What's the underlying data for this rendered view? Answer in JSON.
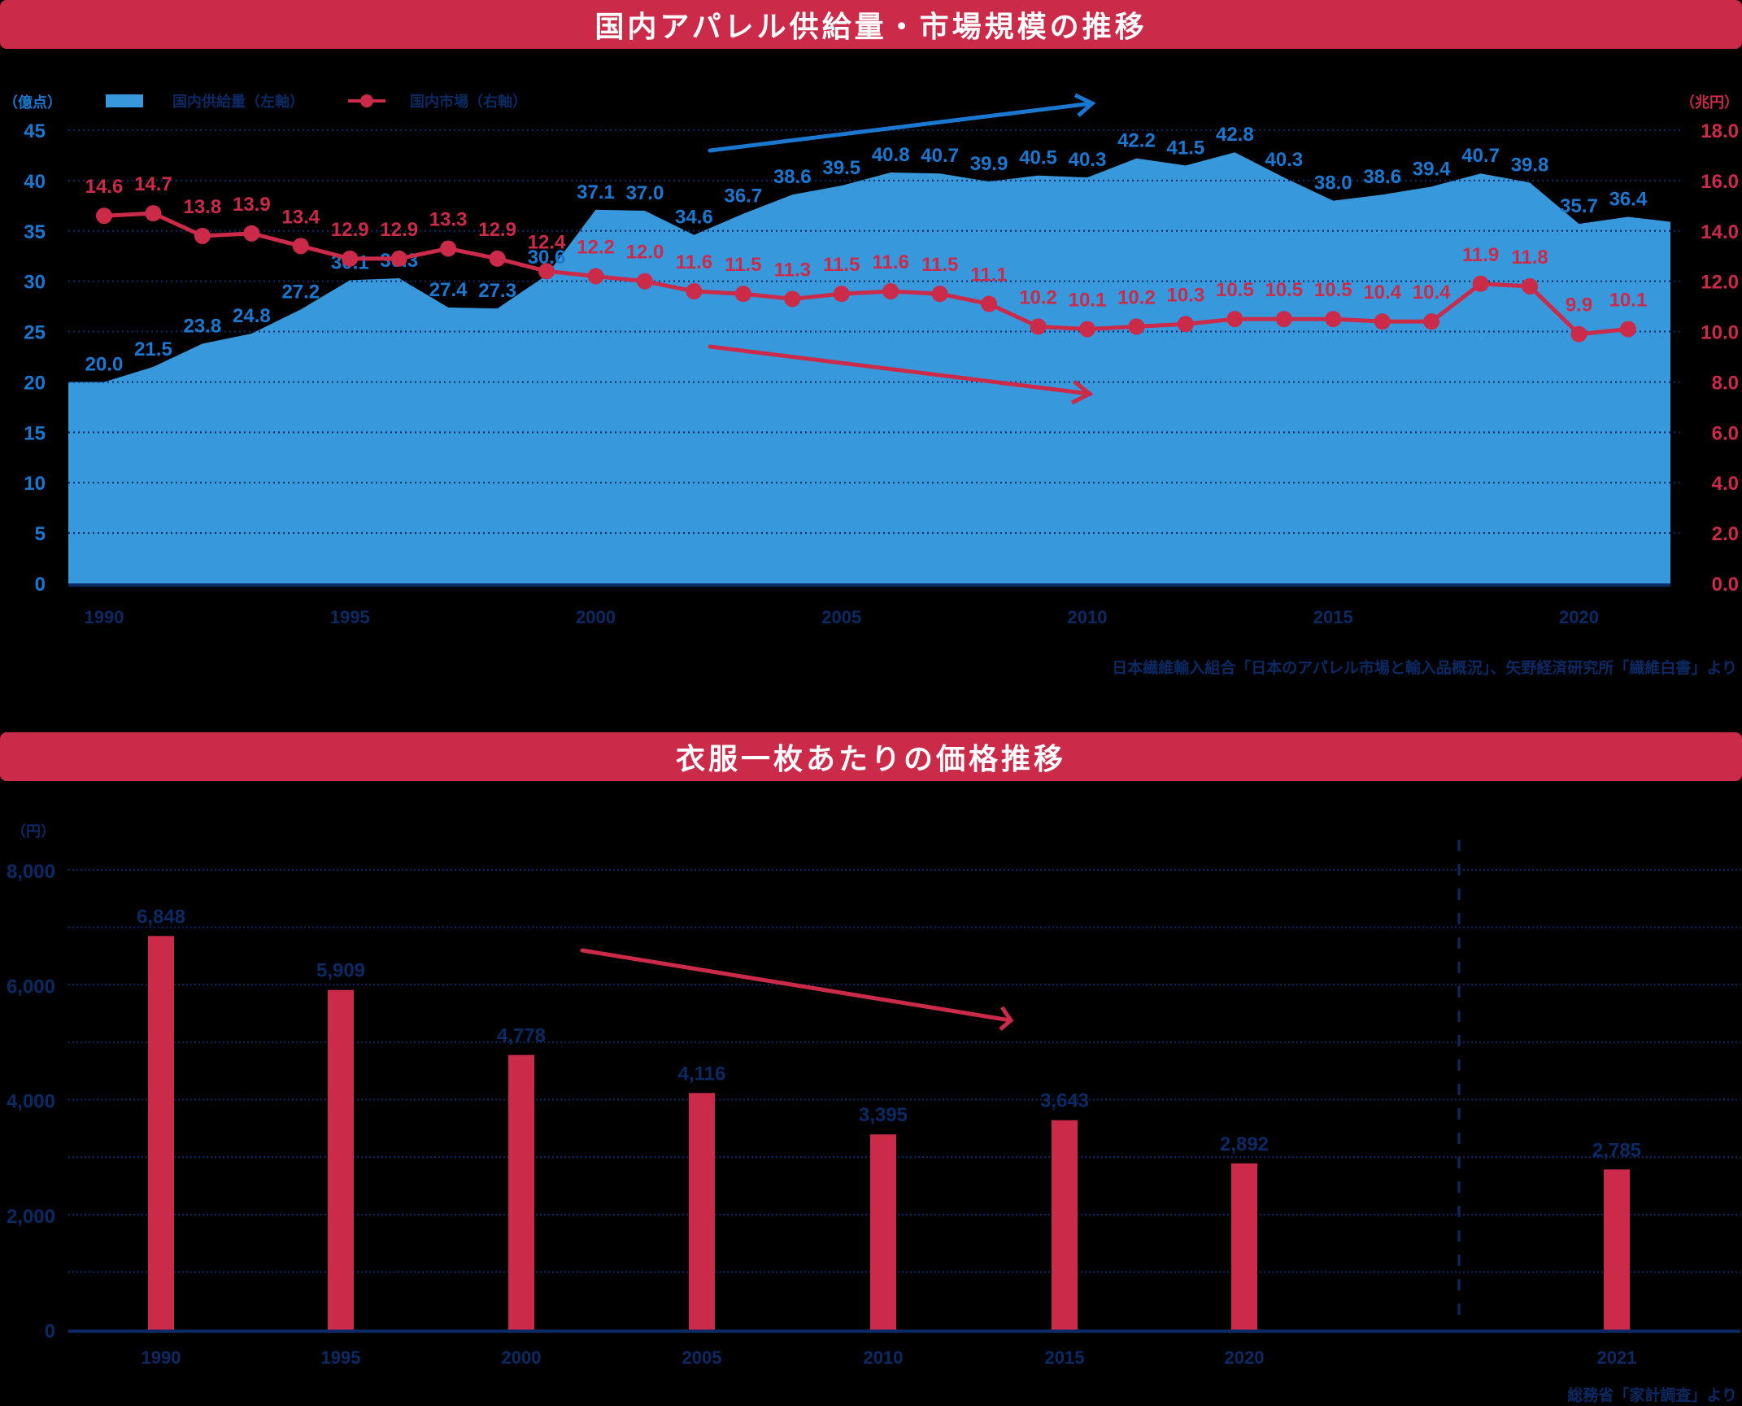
{
  "colors": {
    "banner": "#cb2a48",
    "area": "#3799dc",
    "area_label": "#1a78d0",
    "line": "#cb2a48",
    "navy": "#0b2a63"
  },
  "chart1": {
    "title": "国内アパレル供給量・市場規模の推移",
    "left_unit": "（億点）",
    "right_unit": "（兆円）",
    "legend": {
      "area_label": "国内供給量（左軸）",
      "line_label": "国内市場（右軸）"
    },
    "source": "日本繊維輸入組合「日本のアパレル市場と輸入品概況」、矢野経済研究所「繊維白書」より"
  },
  "chart2": {
    "title": "衣服一枚あたりの価格推移",
    "unit": "（円）",
    "source": "総務省「家計調査」より"
  },
  "chart_data": [
    {
      "type": "area+line",
      "title": "国内アパレル供給量・市場規模の推移",
      "x": [
        1990,
        1991,
        1992,
        1993,
        1994,
        1995,
        1996,
        1997,
        1998,
        1999,
        2000,
        2001,
        2002,
        2003,
        2004,
        2005,
        2006,
        2007,
        2008,
        2009,
        2010,
        2011,
        2012,
        2013,
        2014,
        2015,
        2016,
        2017,
        2018,
        2019,
        2020,
        2021,
        2022
      ],
      "x_tick_labels": [
        "1990",
        "1995",
        "2000",
        "2005",
        "2010",
        "2015",
        "2020"
      ],
      "series": [
        {
          "name": "国内供給量（左軸）",
          "type": "area",
          "axis": "left",
          "values": [
            20.0,
            21.5,
            23.8,
            24.8,
            27.2,
            30.1,
            30.3,
            27.4,
            27.3,
            30.6,
            37.1,
            37.0,
            34.6,
            36.7,
            38.6,
            39.5,
            40.8,
            40.7,
            39.9,
            40.5,
            40.3,
            42.2,
            41.5,
            42.8,
            40.3,
            38.0,
            38.6,
            39.4,
            40.7,
            39.8,
            35.7,
            36.4,
            35.9
          ],
          "labels": [
            "20.0",
            "21.5",
            "23.8",
            "24.8",
            "27.2",
            "30.1",
            "30.3",
            "27.4",
            "27.3",
            "30.6",
            "37.1",
            "37.0",
            "34.6",
            "36.7",
            "38.6",
            "39.5",
            "40.8",
            "40.7",
            "39.9",
            "40.5",
            "40.3",
            "42.2",
            "41.5",
            "42.8",
            "40.3",
            "38.0",
            "38.6",
            "39.4",
            "40.7",
            "39.8",
            "35.7",
            "36.4",
            ""
          ]
        },
        {
          "name": "国内市場（右軸）",
          "type": "line",
          "axis": "right",
          "values": [
            14.6,
            14.7,
            13.8,
            13.9,
            13.4,
            12.9,
            12.9,
            13.3,
            12.9,
            12.4,
            12.2,
            12.0,
            11.6,
            11.5,
            11.3,
            11.5,
            11.6,
            11.5,
            11.1,
            10.2,
            10.1,
            10.2,
            10.3,
            10.5,
            10.5,
            10.5,
            10.4,
            10.4,
            11.9,
            11.8,
            9.9,
            10.1
          ]
        }
      ],
      "left_axis": {
        "label": "（億点）",
        "ticks": [
          "0",
          "5",
          "10",
          "15",
          "20",
          "25",
          "30",
          "35",
          "40",
          "45"
        ],
        "range": [
          0,
          45
        ]
      },
      "right_axis": {
        "label": "（兆円）",
        "ticks": [
          "0.0",
          "2.0",
          "4.0",
          "6.0",
          "8.0",
          "10.0",
          "12.0",
          "14.0",
          "16.0",
          "18.0"
        ],
        "range": [
          0,
          18
        ]
      },
      "annotations": [
        "upward blue trend arrow over supply",
        "downward red trend arrow under market"
      ],
      "grid": true,
      "legend_position": "top-left"
    },
    {
      "type": "bar",
      "title": "衣服一枚あたりの価格推移",
      "categories": [
        "1990",
        "1995",
        "2000",
        "2005",
        "2010",
        "2015",
        "2020",
        "2021"
      ],
      "values": [
        6848,
        5909,
        4778,
        4116,
        3395,
        3643,
        2892,
        2785
      ],
      "labels": [
        "6,848",
        "5,909",
        "4,778",
        "4,116",
        "3,395",
        "3,643",
        "2,892",
        "2,785"
      ],
      "ylabel": "（円）",
      "y_ticks": [
        "0",
        "2,000",
        "4,000",
        "6,000",
        "8,000"
      ],
      "ylim": [
        0,
        8000
      ],
      "grid": true,
      "annotations": [
        "downward red trend arrow",
        "dashed vertical separator before 2021"
      ]
    }
  ]
}
